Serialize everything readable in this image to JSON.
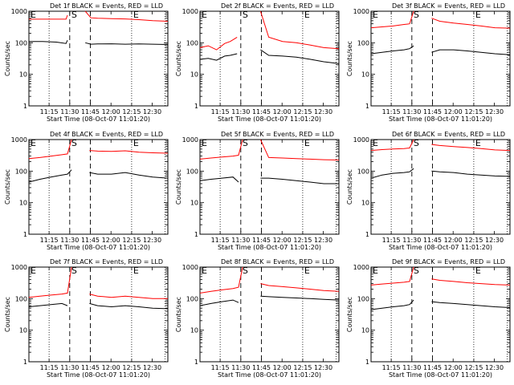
{
  "time_axis": {
    "ticks": [
      {
        "t": 14.67,
        "label": "11:15"
      },
      {
        "t": 29.67,
        "label": "11:30"
      },
      {
        "t": 44.67,
        "label": "11:45"
      },
      {
        "t": 59.67,
        "label": "12:00"
      },
      {
        "t": 74.67,
        "label": "12:15"
      },
      {
        "t": 89.67,
        "label": "12:30"
      }
    ],
    "xlabel": "Start Time (08-Oct-07 11:01:20)",
    "xlim": [
      0,
      101
    ]
  },
  "y_axis": {
    "scale": "log",
    "ylim": [
      1,
      1000
    ],
    "ticks": [
      {
        "v": 1,
        "label": "1"
      },
      {
        "v": 10,
        "label": "10"
      },
      {
        "v": 100,
        "label": "100"
      },
      {
        "v": 1000,
        "label": "1000"
      }
    ],
    "ylabel": "Counts/sec"
  },
  "markers": {
    "start": "S",
    "end": "E"
  },
  "marker_lines": {
    "dotted": [
      14.67,
      74.67,
      99
    ],
    "dashed": [
      29.67,
      44.67
    ]
  },
  "colors": {
    "events": "#000000",
    "lld": "#ff0000"
  },
  "chart_data": [
    {
      "type": "line",
      "title": "Det 1f BLACK = Events, RED = LLD",
      "x": [
        0,
        10,
        20,
        27,
        28,
        32,
        38,
        41,
        45,
        50,
        60,
        70,
        80,
        90,
        101
      ],
      "series": [
        {
          "name": "BLACK = Events",
          "color": "#000000",
          "values": [
            110,
            110,
            105,
            95,
            120,
            null,
            null,
            100,
            90,
            92,
            93,
            90,
            92,
            90,
            88
          ]
        },
        {
          "name": "RED = LLD",
          "color": "#ff0000",
          "values": [
            560,
            560,
            560,
            560,
            750,
            null,
            null,
            1000,
            620,
            600,
            580,
            570,
            540,
            500,
            480
          ]
        }
      ]
    },
    {
      "type": "line",
      "title": "Det 2f BLACK = Events, RED = LLD",
      "x": [
        0,
        6,
        12,
        18,
        22,
        27,
        32,
        39,
        44,
        50,
        60,
        70,
        80,
        90,
        101
      ],
      "series": [
        {
          "name": "BLACK = Events",
          "color": "#000000",
          "values": [
            30,
            32,
            28,
            38,
            40,
            45,
            null,
            null,
            60,
            40,
            38,
            35,
            30,
            25,
            22
          ]
        },
        {
          "name": "RED = LLD",
          "color": "#ff0000",
          "values": [
            70,
            80,
            60,
            95,
            110,
            150,
            null,
            null,
            1000,
            150,
            110,
            100,
            85,
            70,
            65
          ]
        }
      ]
    },
    {
      "type": "line",
      "title": "Det 3f BLACK = Events, RED = LLD",
      "x": [
        0,
        8,
        16,
        24,
        28,
        31,
        37,
        40,
        44,
        50,
        60,
        70,
        80,
        90,
        101
      ],
      "series": [
        {
          "name": "BLACK = Events",
          "color": "#000000",
          "values": [
            45,
            50,
            55,
            60,
            65,
            80,
            null,
            null,
            50,
            60,
            60,
            55,
            50,
            45,
            42
          ]
        },
        {
          "name": "RED = LLD",
          "color": "#ff0000",
          "values": [
            300,
            320,
            340,
            380,
            400,
            1000,
            null,
            null,
            600,
            480,
            420,
            380,
            340,
            300,
            290
          ]
        }
      ]
    },
    {
      "type": "line",
      "title": "Det 4f BLACK = Events, RED = LLD",
      "x": [
        0,
        8,
        16,
        24,
        28,
        31,
        37,
        40,
        44,
        50,
        60,
        70,
        80,
        90,
        101
      ],
      "series": [
        {
          "name": "BLACK = Events",
          "color": "#000000",
          "values": [
            45,
            55,
            65,
            75,
            80,
            110,
            null,
            null,
            90,
            80,
            80,
            90,
            75,
            65,
            60
          ]
        },
        {
          "name": "RED = LLD",
          "color": "#ff0000",
          "values": [
            250,
            270,
            300,
            330,
            350,
            1000,
            null,
            null,
            450,
            430,
            420,
            440,
            400,
            380,
            370
          ]
        }
      ]
    },
    {
      "type": "line",
      "title": "Det 5f BLACK = Events, RED = LLD",
      "x": [
        0,
        8,
        16,
        24,
        28,
        31,
        37,
        40,
        44,
        50,
        60,
        70,
        80,
        90,
        101
      ],
      "series": [
        {
          "name": "BLACK = Events",
          "color": "#000000",
          "values": [
            50,
            55,
            60,
            65,
            45,
            null,
            null,
            null,
            60,
            60,
            55,
            50,
            45,
            40,
            40
          ]
        },
        {
          "name": "RED = LLD",
          "color": "#ff0000",
          "values": [
            240,
            260,
            280,
            300,
            320,
            1000,
            null,
            null,
            1000,
            270,
            260,
            250,
            240,
            230,
            225
          ]
        }
      ]
    },
    {
      "type": "line",
      "title": "Det 6f BLACK = Events, RED = LLD",
      "x": [
        0,
        8,
        16,
        24,
        28,
        31,
        37,
        40,
        44,
        50,
        60,
        70,
        80,
        90,
        101
      ],
      "series": [
        {
          "name": "BLACK = Events",
          "color": "#000000",
          "values": [
            60,
            75,
            85,
            90,
            95,
            120,
            null,
            null,
            100,
            95,
            90,
            80,
            75,
            70,
            68
          ]
        },
        {
          "name": "RED = LLD",
          "color": "#ff0000",
          "values": [
            450,
            480,
            500,
            520,
            540,
            1000,
            null,
            null,
            700,
            650,
            600,
            560,
            520,
            470,
            450
          ]
        }
      ]
    },
    {
      "type": "line",
      "title": "Det 7f BLACK = Events, RED = LLD",
      "x": [
        0,
        8,
        16,
        24,
        28,
        31,
        37,
        40,
        44,
        50,
        60,
        70,
        80,
        90,
        101
      ],
      "series": [
        {
          "name": "BLACK = Events",
          "color": "#000000",
          "values": [
            55,
            60,
            65,
            70,
            60,
            null,
            null,
            null,
            70,
            60,
            55,
            60,
            55,
            50,
            48
          ]
        },
        {
          "name": "RED = LLD",
          "color": "#ff0000",
          "values": [
            110,
            120,
            130,
            140,
            150,
            1000,
            null,
            null,
            140,
            120,
            110,
            120,
            110,
            100,
            100
          ]
        }
      ]
    },
    {
      "type": "line",
      "title": "Det 8f BLACK = Events, RED = LLD",
      "x": [
        0,
        8,
        16,
        24,
        28,
        31,
        37,
        40,
        44,
        50,
        60,
        70,
        80,
        90,
        101
      ],
      "series": [
        {
          "name": "BLACK = Events",
          "color": "#000000",
          "values": [
            60,
            70,
            80,
            90,
            75,
            null,
            null,
            null,
            120,
            115,
            110,
            105,
            100,
            95,
            90
          ]
        },
        {
          "name": "RED = LLD",
          "color": "#ff0000",
          "values": [
            150,
            170,
            190,
            210,
            230,
            1000,
            null,
            null,
            300,
            260,
            240,
            220,
            200,
            180,
            170
          ]
        }
      ]
    },
    {
      "type": "line",
      "title": "Det 9f BLACK = Events, RED = LLD",
      "x": [
        0,
        8,
        16,
        24,
        28,
        31,
        37,
        40,
        44,
        50,
        60,
        70,
        80,
        90,
        101
      ],
      "series": [
        {
          "name": "BLACK = Events",
          "color": "#000000",
          "values": [
            45,
            50,
            55,
            60,
            65,
            90,
            null,
            null,
            80,
            75,
            70,
            65,
            60,
            55,
            52
          ]
        },
        {
          "name": "RED = LLD",
          "color": "#ff0000",
          "values": [
            270,
            290,
            310,
            330,
            350,
            1000,
            null,
            null,
            420,
            380,
            350,
            320,
            300,
            280,
            270
          ]
        }
      ]
    }
  ]
}
